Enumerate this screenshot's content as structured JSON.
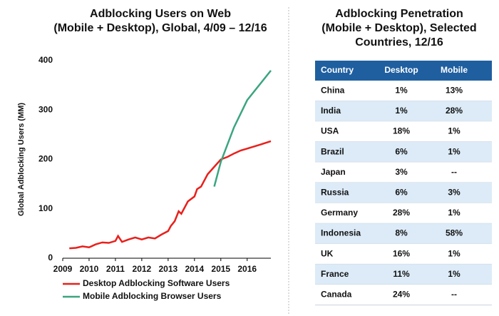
{
  "chart_data": {
    "type": "line",
    "title": [
      "Adblocking Users on Web",
      "(Mobile + Desktop), Global, 4/09 – 12/16"
    ],
    "y_label": "Global Adblocking Users (MM)",
    "xlim": [
      2009,
      2016.9
    ],
    "xticks": [
      2009,
      2010,
      2011,
      2012,
      2013,
      2014,
      2015,
      2016
    ],
    "ylim": [
      0,
      400
    ],
    "yticks": [
      0,
      100,
      200,
      300,
      400
    ],
    "series": [
      {
        "name": "Desktop Adblocking Software Users",
        "color": "#e8201c",
        "x": [
          2009.25,
          2009.5,
          2009.75,
          2010.0,
          2010.25,
          2010.5,
          2010.75,
          2011.0,
          2011.1,
          2011.25,
          2011.5,
          2011.75,
          2012.0,
          2012.25,
          2012.5,
          2012.75,
          2013.0,
          2013.1,
          2013.25,
          2013.4,
          2013.5,
          2013.75,
          2014.0,
          2014.1,
          2014.25,
          2014.4,
          2014.5,
          2014.75,
          2015.0,
          2015.25,
          2015.5,
          2015.75,
          2016.0,
          2016.5,
          2016.9
        ],
        "values": [
          20,
          21,
          24,
          22,
          28,
          32,
          31,
          35,
          45,
          33,
          38,
          42,
          38,
          42,
          40,
          48,
          55,
          65,
          75,
          95,
          90,
          115,
          125,
          140,
          145,
          160,
          170,
          185,
          200,
          205,
          212,
          218,
          222,
          230,
          237
        ]
      },
      {
        "name": "Mobile Adblocking Browser Users",
        "color": "#3aa57f",
        "x": [
          2014.75,
          2015.0,
          2015.5,
          2016.0,
          2016.9
        ],
        "values": [
          145,
          195,
          265,
          320,
          380
        ]
      }
    ]
  },
  "table": {
    "title": [
      "Adblocking Penetration",
      "(Mobile + Desktop), Selected",
      "Countries, 12/16"
    ],
    "header": [
      "Country",
      "Desktop",
      "Mobile"
    ],
    "rows": [
      [
        "China",
        "1%",
        "13%"
      ],
      [
        "India",
        "1%",
        "28%"
      ],
      [
        "USA",
        "18%",
        "1%"
      ],
      [
        "Brazil",
        "6%",
        "1%"
      ],
      [
        "Japan",
        "3%",
        "--"
      ],
      [
        "Russia",
        "6%",
        "3%"
      ],
      [
        "Germany",
        "28%",
        "1%"
      ],
      [
        "Indonesia",
        "8%",
        "58%"
      ],
      [
        "UK",
        "16%",
        "1%"
      ],
      [
        "France",
        "11%",
        "1%"
      ],
      [
        "Canada",
        "24%",
        "--"
      ]
    ]
  }
}
